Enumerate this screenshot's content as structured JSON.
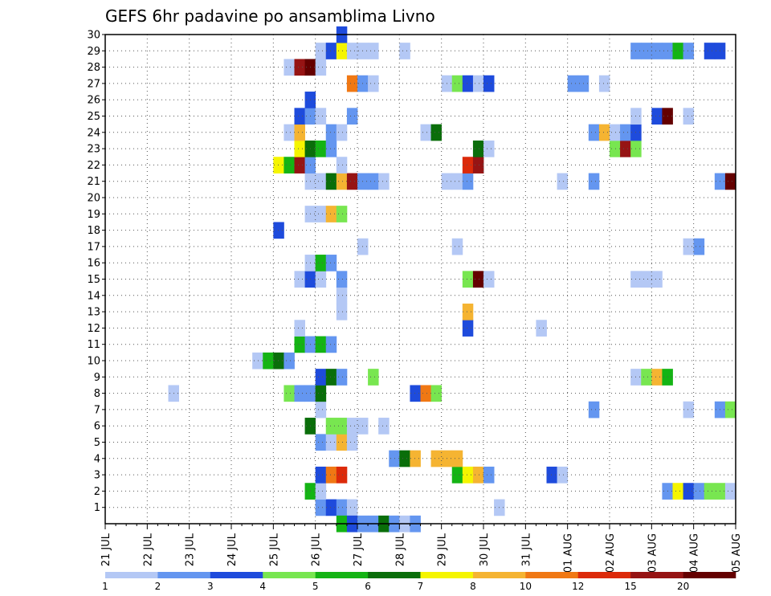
{
  "chart_data": {
    "type": "heatmap",
    "title": "GEFS 6hr padavine po ansamblima Livno",
    "xlabel": "",
    "ylabel": "",
    "x_tick_labels": [
      "21 JUL",
      "22 JUL",
      "23 JUL",
      "24 JUL",
      "25 JUL",
      "26 JUL",
      "27 JUL",
      "28 JUL",
      "29 JUL",
      "30 JUL",
      "31 JUL",
      "01 AUG",
      "02 AUG",
      "03 AUG",
      "04 AUG",
      "05 AUG"
    ],
    "x_unit": "6-hour step",
    "x_range_steps": [
      0,
      60
    ],
    "y_tick_labels": [
      "1",
      "2",
      "3",
      "4",
      "5",
      "6",
      "7",
      "8",
      "9",
      "10",
      "11",
      "12",
      "13",
      "14",
      "15",
      "16",
      "17",
      "18",
      "19",
      "20",
      "21",
      "22",
      "23",
      "24",
      "25",
      "26",
      "27",
      "28",
      "29",
      "30"
    ],
    "y_range": [
      0,
      30
    ],
    "grid": true,
    "legend_position": "bottom",
    "color_levels": [
      1,
      2,
      3,
      4,
      5,
      6,
      7,
      8,
      10,
      12,
      15,
      20
    ],
    "legend_labels": [
      "1",
      "2",
      "3",
      "4",
      "5",
      "6",
      "7",
      "8",
      "10",
      "12",
      "15",
      "20"
    ],
    "colors": [
      "#b4c8f5",
      "#6496f0",
      "#1e4bdc",
      "#78e650",
      "#14b414",
      "#0a6e0a",
      "#f5f500",
      "#f5b432",
      "#f07814",
      "#dc2a0a",
      "#961414",
      "#640000"
    ],
    "cells": [
      [
        1,
        20,
        2
      ],
      [
        1,
        21,
        3
      ],
      [
        1,
        22,
        2
      ],
      [
        1,
        23,
        1
      ],
      [
        1,
        37,
        1
      ],
      [
        2,
        19,
        5
      ],
      [
        2,
        20,
        1
      ],
      [
        2,
        53,
        2
      ],
      [
        2,
        54,
        7
      ],
      [
        2,
        55,
        3
      ],
      [
        2,
        56,
        2
      ],
      [
        2,
        57,
        4
      ],
      [
        2,
        58,
        4
      ],
      [
        2,
        59,
        1
      ],
      [
        3,
        20,
        3
      ],
      [
        3,
        21,
        9
      ],
      [
        3,
        22,
        10
      ],
      [
        3,
        33,
        5
      ],
      [
        3,
        34,
        7
      ],
      [
        3,
        35,
        8
      ],
      [
        3,
        36,
        2
      ],
      [
        3,
        42,
        3
      ],
      [
        3,
        43,
        1
      ],
      [
        4,
        27,
        2
      ],
      [
        4,
        28,
        6
      ],
      [
        4,
        29,
        8
      ],
      [
        4,
        31,
        8
      ],
      [
        4,
        32,
        8
      ],
      [
        4,
        33,
        8
      ],
      [
        5,
        20,
        2
      ],
      [
        5,
        21,
        1
      ],
      [
        5,
        22,
        8
      ],
      [
        5,
        23,
        1
      ],
      [
        6,
        19,
        6
      ],
      [
        6,
        21,
        4
      ],
      [
        6,
        22,
        4
      ],
      [
        6,
        23,
        1
      ],
      [
        6,
        24,
        1
      ],
      [
        6,
        26,
        1
      ],
      [
        7,
        20,
        1
      ],
      [
        7,
        46,
        2
      ],
      [
        7,
        55,
        1
      ],
      [
        7,
        58,
        2
      ],
      [
        7,
        59,
        4
      ],
      [
        8,
        6,
        1
      ],
      [
        8,
        17,
        4
      ],
      [
        8,
        18,
        2
      ],
      [
        8,
        19,
        2
      ],
      [
        8,
        20,
        6
      ],
      [
        8,
        29,
        3
      ],
      [
        8,
        30,
        9
      ],
      [
        8,
        31,
        4
      ],
      [
        9,
        20,
        3
      ],
      [
        9,
        21,
        6
      ],
      [
        9,
        22,
        2
      ],
      [
        9,
        25,
        4
      ],
      [
        9,
        50,
        1
      ],
      [
        9,
        51,
        4
      ],
      [
        9,
        52,
        8
      ],
      [
        9,
        53,
        5
      ],
      [
        10,
        14,
        1
      ],
      [
        10,
        15,
        5
      ],
      [
        10,
        16,
        6
      ],
      [
        10,
        17,
        2
      ],
      [
        11,
        18,
        5
      ],
      [
        11,
        19,
        2
      ],
      [
        11,
        20,
        5
      ],
      [
        11,
        21,
        2
      ],
      [
        12,
        18,
        1
      ],
      [
        12,
        34,
        3
      ],
      [
        12,
        41,
        1
      ],
      [
        13,
        22,
        1
      ],
      [
        13,
        34,
        8
      ],
      [
        14,
        22,
        1
      ],
      [
        15,
        18,
        1
      ],
      [
        15,
        19,
        3
      ],
      [
        15,
        20,
        1
      ],
      [
        15,
        22,
        2
      ],
      [
        15,
        34,
        4
      ],
      [
        15,
        35,
        12
      ],
      [
        15,
        36,
        1
      ],
      [
        15,
        50,
        1
      ],
      [
        15,
        51,
        1
      ],
      [
        15,
        52,
        1
      ],
      [
        16,
        19,
        1
      ],
      [
        16,
        20,
        5
      ],
      [
        16,
        21,
        2
      ],
      [
        17,
        24,
        1
      ],
      [
        17,
        33,
        1
      ],
      [
        17,
        55,
        1
      ],
      [
        17,
        56,
        2
      ],
      [
        18,
        16,
        3
      ],
      [
        19,
        19,
        1
      ],
      [
        19,
        20,
        1
      ],
      [
        19,
        21,
        8
      ],
      [
        19,
        22,
        4
      ],
      [
        21,
        19,
        1
      ],
      [
        21,
        20,
        1
      ],
      [
        21,
        21,
        6
      ],
      [
        21,
        22,
        8
      ],
      [
        21,
        23,
        11
      ],
      [
        21,
        24,
        2
      ],
      [
        21,
        25,
        2
      ],
      [
        21,
        26,
        1
      ],
      [
        21,
        32,
        1
      ],
      [
        21,
        33,
        1
      ],
      [
        21,
        34,
        2
      ],
      [
        21,
        43,
        1
      ],
      [
        21,
        46,
        2
      ],
      [
        21,
        58,
        2
      ],
      [
        21,
        59,
        12
      ],
      [
        22,
        16,
        7
      ],
      [
        22,
        17,
        5
      ],
      [
        22,
        18,
        11
      ],
      [
        22,
        19,
        2
      ],
      [
        22,
        22,
        1
      ],
      [
        22,
        34,
        10
      ],
      [
        22,
        35,
        11
      ],
      [
        23,
        18,
        7
      ],
      [
        23,
        19,
        6
      ],
      [
        23,
        20,
        5
      ],
      [
        23,
        21,
        2
      ],
      [
        23,
        35,
        6
      ],
      [
        23,
        36,
        1
      ],
      [
        23,
        48,
        4
      ],
      [
        23,
        49,
        11
      ],
      [
        23,
        50,
        4
      ],
      [
        24,
        17,
        1
      ],
      [
        24,
        18,
        8
      ],
      [
        24,
        21,
        2
      ],
      [
        24,
        22,
        1
      ],
      [
        24,
        30,
        1
      ],
      [
        24,
        31,
        6
      ],
      [
        24,
        46,
        2
      ],
      [
        24,
        47,
        8
      ],
      [
        24,
        48,
        1
      ],
      [
        24,
        49,
        2
      ],
      [
        24,
        50,
        3
      ],
      [
        25,
        18,
        3
      ],
      [
        25,
        19,
        2
      ],
      [
        25,
        20,
        1
      ],
      [
        25,
        23,
        2
      ],
      [
        25,
        50,
        1
      ],
      [
        25,
        52,
        3
      ],
      [
        25,
        53,
        12
      ],
      [
        25,
        55,
        1
      ],
      [
        26,
        19,
        3
      ],
      [
        27,
        23,
        9
      ],
      [
        27,
        24,
        2
      ],
      [
        27,
        25,
        1
      ],
      [
        27,
        32,
        1
      ],
      [
        27,
        33,
        4
      ],
      [
        27,
        34,
        3
      ],
      [
        27,
        35,
        1
      ],
      [
        27,
        36,
        3
      ],
      [
        27,
        44,
        2
      ],
      [
        27,
        45,
        2
      ],
      [
        27,
        47,
        1
      ],
      [
        28,
        17,
        1
      ],
      [
        28,
        18,
        11
      ],
      [
        28,
        19,
        12
      ],
      [
        28,
        20,
        1
      ],
      [
        29,
        20,
        1
      ],
      [
        29,
        21,
        3
      ],
      [
        29,
        22,
        7
      ],
      [
        29,
        23,
        1
      ],
      [
        29,
        24,
        1
      ],
      [
        29,
        25,
        1
      ],
      [
        29,
        28,
        1
      ],
      [
        29,
        50,
        2
      ],
      [
        29,
        51,
        2
      ],
      [
        29,
        52,
        2
      ],
      [
        29,
        53,
        2
      ],
      [
        29,
        54,
        5
      ],
      [
        29,
        55,
        2
      ],
      [
        29,
        57,
        3
      ],
      [
        29,
        58,
        3
      ],
      [
        30,
        22,
        3
      ],
      [
        0,
        22,
        5
      ],
      [
        0,
        23,
        3
      ],
      [
        0,
        24,
        2
      ],
      [
        0,
        25,
        2
      ],
      [
        0,
        26,
        6
      ],
      [
        0,
        27,
        2
      ],
      [
        0,
        28,
        1
      ],
      [
        0,
        29,
        2
      ]
    ]
  }
}
